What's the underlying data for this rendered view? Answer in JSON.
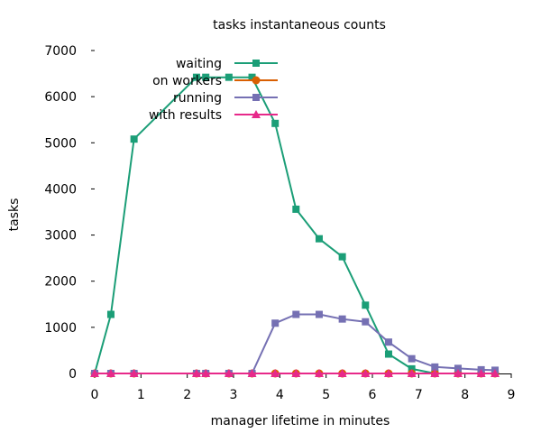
{
  "chart_data": {
    "type": "line",
    "title": "tasks instantaneous counts",
    "xlabel": "manager lifetime in minutes",
    "ylabel": "tasks",
    "xlim": [
      0,
      9
    ],
    "ylim": [
      0,
      7000
    ],
    "xticks": [
      "0",
      "1",
      "2",
      "3",
      "4",
      "5",
      "6",
      "7",
      "8",
      "9"
    ],
    "yticks": [
      "0",
      "1000",
      "2000",
      "3000",
      "4000",
      "5000",
      "6000",
      "7000"
    ],
    "grid": false,
    "legend_position": "top-left",
    "series": [
      {
        "name": "waiting",
        "color": "#1b9e77",
        "marker": "square",
        "x": [
          0,
          0.35,
          0.85,
          2.2,
          2.4,
          2.9,
          3.4,
          3.9,
          4.35,
          4.85,
          5.35,
          5.85,
          6.35,
          6.85,
          7.35,
          7.85,
          8.35,
          8.65
        ],
        "y": [
          0,
          1280,
          5080,
          6420,
          6420,
          6420,
          6420,
          5420,
          3560,
          2920,
          2530,
          1480,
          420,
          100,
          0,
          0,
          0,
          0
        ]
      },
      {
        "name": "on workers",
        "color": "#d95f02",
        "marker": "circle",
        "x": [
          0,
          0.35,
          0.85,
          2.2,
          2.4,
          2.9,
          3.4,
          3.9,
          4.35,
          4.85,
          5.35,
          5.85,
          6.35,
          6.85,
          7.35,
          7.85,
          8.35,
          8.65
        ],
        "y": [
          0,
          0,
          0,
          0,
          0,
          0,
          0,
          0,
          0,
          0,
          0,
          0,
          0,
          0,
          0,
          0,
          0,
          0
        ]
      },
      {
        "name": "running",
        "color": "#7570b3",
        "marker": "square",
        "x": [
          0,
          0.35,
          0.85,
          2.2,
          2.4,
          2.9,
          3.4,
          3.9,
          4.35,
          4.85,
          5.35,
          5.85,
          6.35,
          6.85,
          7.35,
          7.85,
          8.35,
          8.65
        ],
        "y": [
          0,
          0,
          0,
          0,
          0,
          0,
          0,
          1090,
          1280,
          1280,
          1180,
          1120,
          680,
          320,
          140,
          110,
          80,
          70
        ]
      },
      {
        "name": "with results",
        "color": "#e7298a",
        "marker": "triangle",
        "x": [
          0,
          0.35,
          0.85,
          2.2,
          2.4,
          2.9,
          3.4,
          3.9,
          4.35,
          4.85,
          5.35,
          5.85,
          6.35,
          6.85,
          7.35,
          7.85,
          8.35,
          8.65
        ],
        "y": [
          0,
          0,
          0,
          0,
          0,
          0,
          0,
          0,
          0,
          0,
          0,
          0,
          0,
          0,
          0,
          0,
          0,
          0
        ]
      }
    ]
  }
}
